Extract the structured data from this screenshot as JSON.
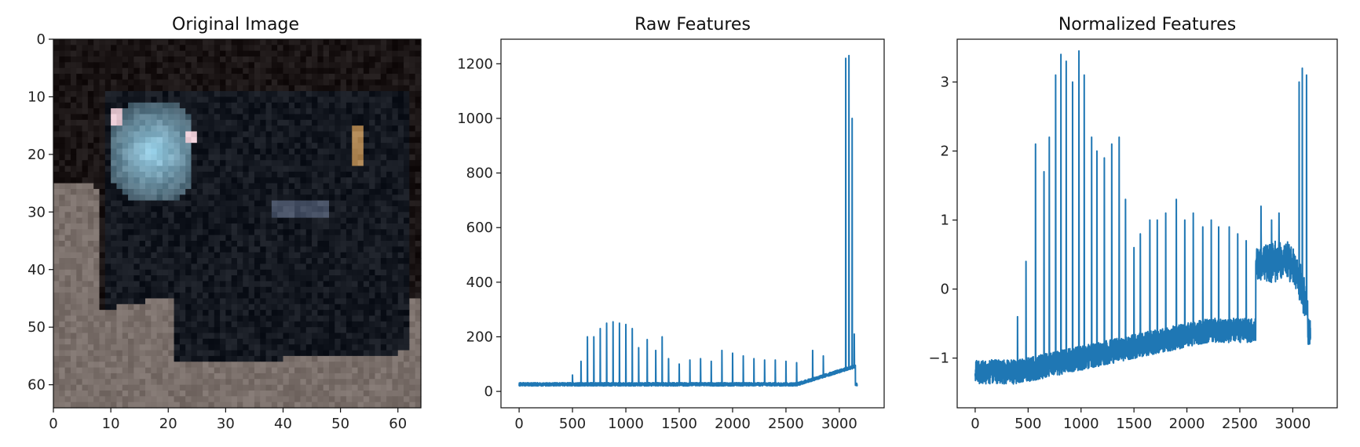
{
  "chart_data": [
    {
      "type": "image",
      "title": "Original Image",
      "xlim": [
        0,
        64
      ],
      "ylim": [
        64,
        0
      ],
      "x_ticks": [
        0,
        10,
        20,
        30,
        40,
        50,
        60
      ],
      "y_ticks": [
        0,
        10,
        20,
        30,
        40,
        50,
        60
      ],
      "tick_labels_x": [
        "0",
        "10",
        "20",
        "30",
        "40",
        "50",
        "60"
      ],
      "tick_labels_y": [
        "0",
        "10",
        "20",
        "30",
        "40",
        "50",
        "60"
      ],
      "description_colors": {
        "background": "#1a1414",
        "road": "#7a6f6a",
        "car_body": "#141820",
        "highlight": "#9fd8f0"
      }
    },
    {
      "type": "line",
      "title": "Raw Features",
      "xlim": [
        -170,
        3420
      ],
      "ylim": [
        -60,
        1290
      ],
      "x_ticks": [
        0,
        500,
        1000,
        1500,
        2000,
        2500,
        3000
      ],
      "y_ticks": [
        0,
        200,
        400,
        600,
        800,
        1000,
        1200
      ],
      "tick_labels_x": [
        "0",
        "500",
        "1000",
        "1500",
        "2000",
        "2500",
        "3000"
      ],
      "tick_labels_y": [
        "0",
        "200",
        "400",
        "600",
        "800",
        "1000",
        "1200"
      ],
      "series_color": "#1f77b4",
      "n_points": 3168,
      "key_values": {
        "baseline_start": 20,
        "peaks": [
          [
            500,
            60
          ],
          [
            580,
            110
          ],
          [
            640,
            200
          ],
          [
            700,
            200
          ],
          [
            760,
            230
          ],
          [
            820,
            250
          ],
          [
            880,
            255
          ],
          [
            940,
            250
          ],
          [
            1000,
            245
          ],
          [
            1060,
            230
          ],
          [
            1120,
            160
          ],
          [
            1200,
            190
          ],
          [
            1280,
            150
          ],
          [
            1340,
            200
          ],
          [
            1400,
            120
          ],
          [
            1500,
            100
          ],
          [
            1600,
            115
          ],
          [
            1700,
            120
          ],
          [
            1800,
            110
          ],
          [
            1900,
            150
          ],
          [
            2000,
            140
          ],
          [
            2100,
            130
          ],
          [
            2200,
            120
          ],
          [
            2300,
            115
          ],
          [
            2400,
            115
          ],
          [
            2500,
            110
          ],
          [
            2600,
            105
          ],
          [
            2750,
            150
          ],
          [
            2850,
            130
          ],
          [
            3060,
            1220
          ],
          [
            3090,
            1230
          ],
          [
            3120,
            1000
          ],
          [
            3140,
            210
          ]
        ],
        "end": 20
      }
    },
    {
      "type": "line",
      "title": "Normalized Features",
      "xlim": [
        -170,
        3420
      ],
      "ylim": [
        -1.72,
        3.62
      ],
      "x_ticks": [
        0,
        500,
        1000,
        1500,
        2000,
        2500,
        3000
      ],
      "y_ticks": [
        -1,
        0,
        1,
        2,
        3
      ],
      "tick_labels_x": [
        "0",
        "500",
        "1000",
        "1500",
        "2000",
        "2500",
        "3000"
      ],
      "tick_labels_y": [
        "−1",
        "0",
        "1",
        "2",
        "3"
      ],
      "series_color": "#1f77b4",
      "n_points": 3168,
      "key_values": {
        "baseline_start": -1.2,
        "peaks": [
          [
            400,
            -0.4
          ],
          [
            480,
            0.4
          ],
          [
            570,
            2.1
          ],
          [
            650,
            1.7
          ],
          [
            700,
            2.2
          ],
          [
            760,
            3.1
          ],
          [
            810,
            3.4
          ],
          [
            860,
            3.3
          ],
          [
            920,
            3.0
          ],
          [
            980,
            3.45
          ],
          [
            1030,
            3.1
          ],
          [
            1100,
            2.2
          ],
          [
            1150,
            2.0
          ],
          [
            1220,
            1.9
          ],
          [
            1290,
            2.1
          ],
          [
            1360,
            2.2
          ],
          [
            1420,
            1.3
          ],
          [
            1500,
            0.6
          ],
          [
            1560,
            0.8
          ],
          [
            1650,
            1.0
          ],
          [
            1720,
            1.0
          ],
          [
            1800,
            1.1
          ],
          [
            1900,
            1.3
          ],
          [
            1980,
            1.0
          ],
          [
            2060,
            1.1
          ],
          [
            2150,
            0.9
          ],
          [
            2230,
            1.0
          ],
          [
            2300,
            0.9
          ],
          [
            2400,
            0.9
          ],
          [
            2480,
            0.8
          ],
          [
            2560,
            0.7
          ],
          [
            2700,
            1.2
          ],
          [
            2800,
            1.0
          ],
          [
            2870,
            1.1
          ],
          [
            3060,
            3.0
          ],
          [
            3090,
            3.2
          ],
          [
            3130,
            3.1
          ]
        ],
        "end": -0.6
      }
    }
  ]
}
